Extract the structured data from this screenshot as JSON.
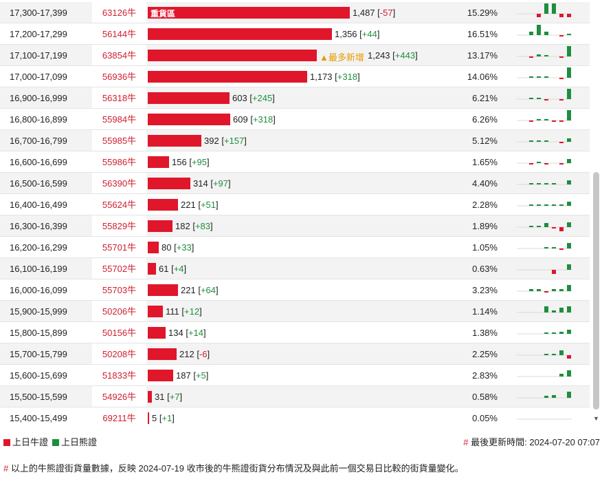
{
  "colors": {
    "bull": "#e0162b",
    "bear": "#1e8e3e",
    "code": "#cf1e2e",
    "highlight": "#e69a00"
  },
  "rows": [
    {
      "range": "17,300-17,399",
      "code": "63126牛",
      "count": "1,487",
      "change": "-57",
      "pct": "15.29%",
      "value": 1487,
      "label": "重貨區",
      "spark": [
        0,
        0,
        -1,
        3,
        3,
        -1,
        -1
      ]
    },
    {
      "range": "17,200-17,299",
      "code": "56144牛",
      "count": "1,356",
      "change": "+44",
      "pct": "16.51%",
      "value": 1356,
      "spark": [
        0,
        1,
        3,
        1,
        0,
        -0.3,
        0.3
      ]
    },
    {
      "range": "17,100-17,199",
      "code": "63854牛",
      "count": "1,243",
      "change": "+443",
      "pct": "13.17%",
      "value": 1243,
      "tag": "▲最多新增",
      "spark": [
        0,
        -0.3,
        0.6,
        0.3,
        0,
        -0.3,
        3
      ]
    },
    {
      "range": "17,000-17,099",
      "code": "56936牛",
      "count": "1,173",
      "change": "+318",
      "pct": "14.06%",
      "value": 1173,
      "spark": [
        0,
        0.3,
        0.3,
        0.3,
        0,
        -0.3,
        3
      ]
    },
    {
      "range": "16,900-16,999",
      "code": "56318牛",
      "count": "603",
      "change": "+245",
      "pct": "6.21%",
      "value": 603,
      "spark": [
        0,
        0.3,
        0.3,
        -0.3,
        0,
        -0.3,
        3
      ]
    },
    {
      "range": "16,800-16,899",
      "code": "55984牛",
      "count": "609",
      "change": "+318",
      "pct": "6.26%",
      "value": 609,
      "spark": [
        0,
        -0.3,
        0.3,
        0.3,
        -0.3,
        -0.3,
        3
      ]
    },
    {
      "range": "16,700-16,799",
      "code": "55985牛",
      "count": "392",
      "change": "+157",
      "pct": "5.12%",
      "value": 392,
      "spark": [
        0,
        0.4,
        0.3,
        0.3,
        0,
        -0.3,
        1
      ]
    },
    {
      "range": "16,600-16,699",
      "code": "55986牛",
      "count": "156",
      "change": "+95",
      "pct": "1.65%",
      "value": 156,
      "spark": [
        0,
        -0.3,
        0.3,
        -0.3,
        0,
        -0.3,
        1.2
      ]
    },
    {
      "range": "16,500-16,599",
      "code": "56390牛",
      "count": "314",
      "change": "+97",
      "pct": "4.40%",
      "value": 314,
      "spark": [
        0,
        0.3,
        0.3,
        0.3,
        0.3,
        0,
        1.2
      ]
    },
    {
      "range": "16,400-16,499",
      "code": "55624牛",
      "count": "221",
      "change": "+51",
      "pct": "2.28%",
      "value": 221,
      "spark": [
        0,
        0.3,
        0.3,
        0.3,
        0.3,
        0.3,
        1.2
      ]
    },
    {
      "range": "16,300-16,399",
      "code": "55829牛",
      "count": "182",
      "change": "+83",
      "pct": "1.89%",
      "value": 182,
      "spark": [
        0,
        0.3,
        0.2,
        1.2,
        -0.3,
        -1.1,
        1.4
      ]
    },
    {
      "range": "16,200-16,299",
      "code": "55701牛",
      "count": "80",
      "change": "+33",
      "pct": "1.05%",
      "value": 80,
      "spark": [
        0,
        0,
        0,
        0.3,
        0.3,
        -0.3,
        1.5
      ]
    },
    {
      "range": "16,100-16,199",
      "code": "55702牛",
      "count": "61",
      "change": "+4",
      "pct": "0.63%",
      "value": 61,
      "spark": [
        0,
        0,
        0,
        0,
        -1.2,
        0,
        1.6
      ]
    },
    {
      "range": "16,000-16,099",
      "code": "55703牛",
      "count": "221",
      "change": "+64",
      "pct": "3.23%",
      "value": 221,
      "spark": [
        0,
        0.6,
        0.6,
        -0.3,
        0.5,
        0.5,
        1.7
      ]
    },
    {
      "range": "15,900-15,999",
      "code": "50206牛",
      "count": "111",
      "change": "+12",
      "pct": "1.14%",
      "value": 111,
      "spark": [
        0,
        0,
        0,
        1.7,
        0.6,
        1.4,
        1.7
      ]
    },
    {
      "range": "15,800-15,899",
      "code": "50156牛",
      "count": "134",
      "change": "+14",
      "pct": "1.38%",
      "value": 134,
      "spark": [
        0,
        0,
        0,
        0.3,
        0.3,
        0.6,
        1.2
      ]
    },
    {
      "range": "15,700-15,799",
      "code": "50208牛",
      "count": "212",
      "change": "-6",
      "pct": "2.25%",
      "value": 212,
      "spark": [
        0,
        0,
        0,
        0.3,
        0.3,
        1.4,
        -1
      ]
    },
    {
      "range": "15,600-15,699",
      "code": "51833牛",
      "count": "187",
      "change": "+5",
      "pct": "2.83%",
      "value": 187,
      "spark": [
        0,
        0,
        0,
        0,
        0,
        0.8,
        1.8
      ]
    },
    {
      "range": "15,500-15,599",
      "code": "54926牛",
      "count": "31",
      "change": "+7",
      "pct": "0.58%",
      "value": 31,
      "spark": [
        0,
        0,
        0,
        0.5,
        0.8,
        0,
        1.7
      ]
    },
    {
      "range": "15,400-15,499",
      "code": "69211牛",
      "count": "5",
      "change": "+1",
      "pct": "0.05%",
      "value": 5,
      "spark": [
        0,
        0,
        0,
        0,
        0,
        0,
        0
      ]
    }
  ],
  "legend": {
    "bull_label": "上日牛證",
    "bear_label": "上日熊證"
  },
  "updated": {
    "hash": "#",
    "text": "最後更新時間: 2024-07-20 07:07"
  },
  "note": {
    "hash": "#",
    "text": "以上的牛熊證街貨量數據，反映 2024-07-19 收市後的牛熊證街貨分布情況及與此前一個交易日比較的街貨量變化。"
  }
}
